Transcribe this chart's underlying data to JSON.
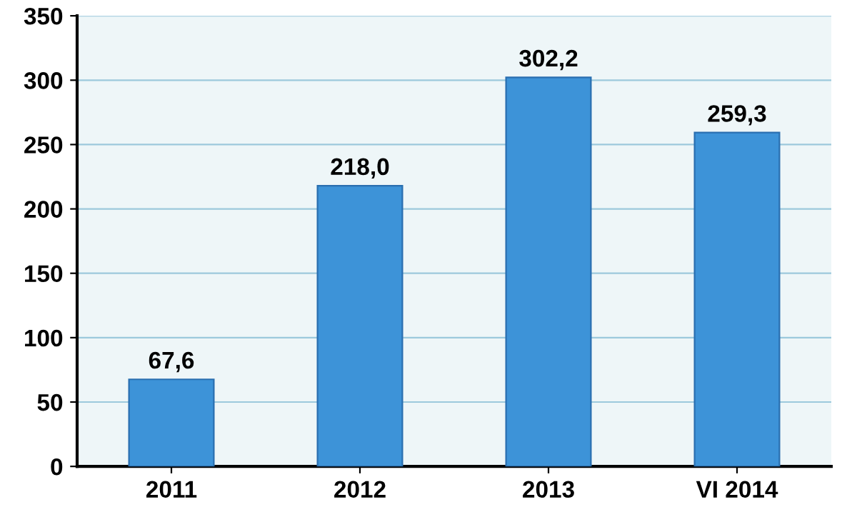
{
  "chart_data": {
    "type": "bar",
    "categories": [
      "2011",
      "2012",
      "2013",
      "VI 2014"
    ],
    "values": [
      67.6,
      218.0,
      302.2,
      259.3
    ],
    "value_labels": [
      "67,6",
      "218,0",
      "302,2",
      "259,3"
    ],
    "color": "#3d93d8",
    "ylim": [
      0,
      350
    ],
    "yticks": [
      0,
      50,
      100,
      150,
      200,
      250,
      300,
      350
    ],
    "grid": "y"
  }
}
